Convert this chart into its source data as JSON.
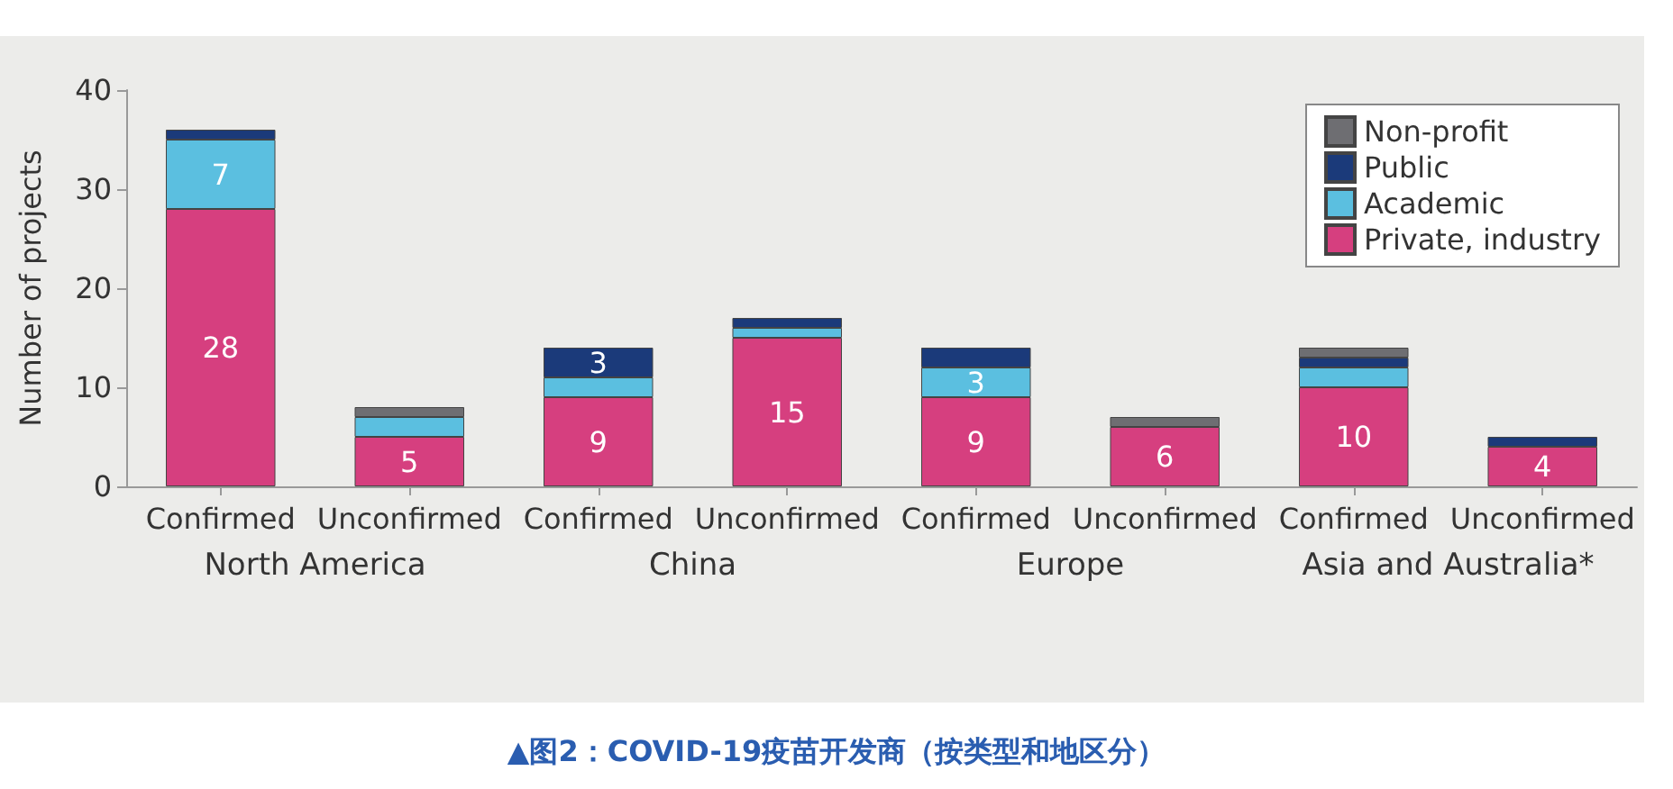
{
  "chart_data": {
    "type": "bar",
    "stacked": true,
    "title": "▲图2：COVID-19疫苗开发商（按类型和地区分）",
    "ylabel": "Number of projects",
    "categories": [
      "Confirmed",
      "Unconfirmed",
      "Confirmed",
      "Unconfirmed",
      "Confirmed",
      "Unconfirmed",
      "Confirmed",
      "Unconfirmed"
    ],
    "annotations": [
      "North America",
      "China",
      "Europe",
      "Asia and Australia*"
    ],
    "series": [
      {
        "name": "Private, industry",
        "color": "#d63f7f",
        "values": [
          28,
          5,
          9,
          15,
          9,
          6,
          10,
          4
        ],
        "value_labels": [
          "28",
          "5",
          "9",
          "15",
          "9",
          "6",
          "10",
          "4"
        ]
      },
      {
        "name": "Academic",
        "color": "#5bbfe0",
        "values": [
          7,
          2,
          2,
          1,
          3,
          0,
          2,
          0
        ],
        "value_labels": [
          "7",
          null,
          null,
          null,
          "3",
          null,
          null,
          null
        ]
      },
      {
        "name": "Public",
        "color": "#1b3a7a",
        "values": [
          1,
          0,
          3,
          1,
          2,
          0,
          1,
          1
        ],
        "value_labels": [
          null,
          null,
          "3",
          null,
          null,
          null,
          null,
          null
        ]
      },
      {
        "name": "Non-profit",
        "color": "#6e6e72",
        "values": [
          0,
          1,
          0,
          0,
          0,
          1,
          1,
          0
        ]
      }
    ],
    "ylim": [
      0,
      40
    ],
    "yticks": [
      0,
      10,
      20,
      30,
      40
    ],
    "grid": false,
    "legend": "top right"
  }
}
